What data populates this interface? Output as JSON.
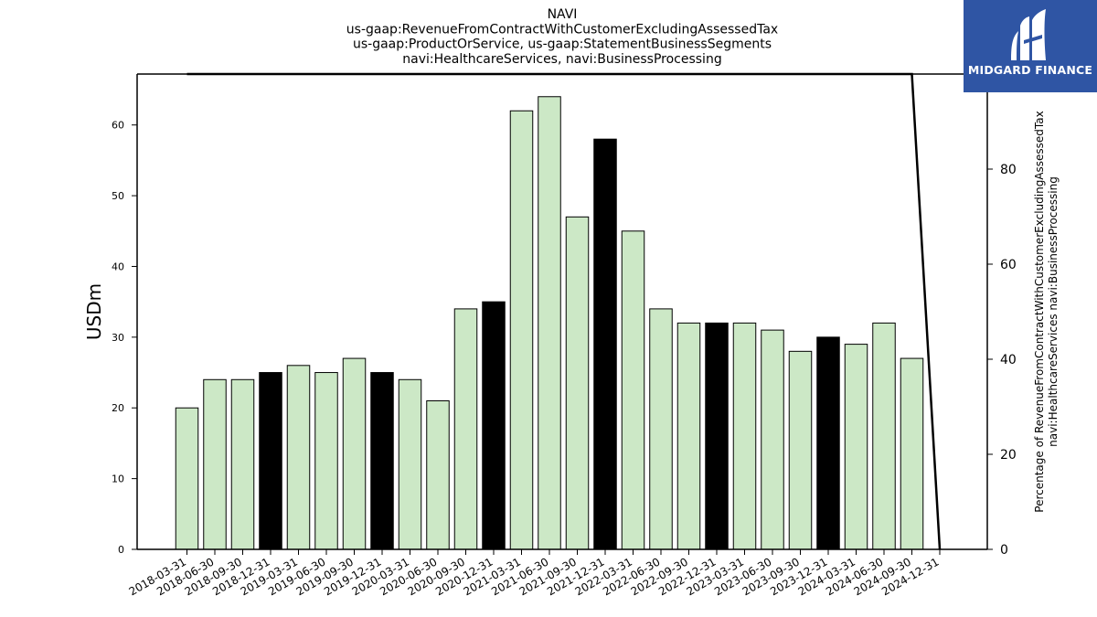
{
  "chart_data": {
    "type": "bar",
    "title": [
      "NAVI",
      "us-gaap:RevenueFromContractWithCustomerExcludingAssessedTax",
      "us-gaap:ProductOrService, us-gaap:StatementBusinessSegments",
      "navi:HealthcareServices, navi:BusinessProcessing"
    ],
    "ylabel": "USDm",
    "y2label": [
      "Percentage of RevenueFromContractWithCustomerExcludingAssessedTax",
      "navi:HealthcareServices navi:BusinessProcessing"
    ],
    "categories": [
      "2018-03-31",
      "2018-06-30",
      "2018-09-30",
      "2018-12-31",
      "2019-03-31",
      "2019-06-30",
      "2019-09-30",
      "2019-12-31",
      "2020-03-31",
      "2020-06-30",
      "2020-09-30",
      "2020-12-31",
      "2021-03-31",
      "2021-06-30",
      "2021-09-30",
      "2021-12-31",
      "2022-03-31",
      "2022-06-30",
      "2022-09-30",
      "2022-12-31",
      "2023-03-31",
      "2023-06-30",
      "2023-09-30",
      "2023-12-31",
      "2024-03-31",
      "2024-06-30",
      "2024-09-30",
      "2024-12-31"
    ],
    "values": [
      20,
      24,
      24,
      25,
      26,
      25,
      27,
      25,
      24,
      21,
      34,
      35,
      62,
      64,
      47,
      58,
      45,
      34,
      32,
      32,
      32,
      31,
      28,
      30,
      29,
      32,
      27,
      null
    ],
    "highlight": [
      false,
      false,
      false,
      true,
      false,
      false,
      false,
      true,
      false,
      false,
      false,
      true,
      false,
      false,
      false,
      true,
      false,
      false,
      false,
      true,
      false,
      false,
      false,
      true,
      false,
      false,
      false,
      false
    ],
    "percentage_line": {
      "x": [
        "2018-03-31",
        "2024-09-30",
        "2024-12-31"
      ],
      "values": [
        100,
        100,
        0
      ]
    },
    "ylim": [
      0,
      67.2
    ],
    "yticks": [
      0,
      10,
      20,
      30,
      40,
      50,
      60
    ],
    "y2lim": [
      0,
      100
    ],
    "y2ticks": [
      0,
      20,
      40,
      60,
      80
    ],
    "colors": {
      "bar": "#cce8c6",
      "highlight": "#000000",
      "edge": "#000000",
      "line": "#000000"
    },
    "grid": false
  },
  "logo": {
    "text": "MIDGARD FINANCE",
    "color": "#2f55a4"
  }
}
